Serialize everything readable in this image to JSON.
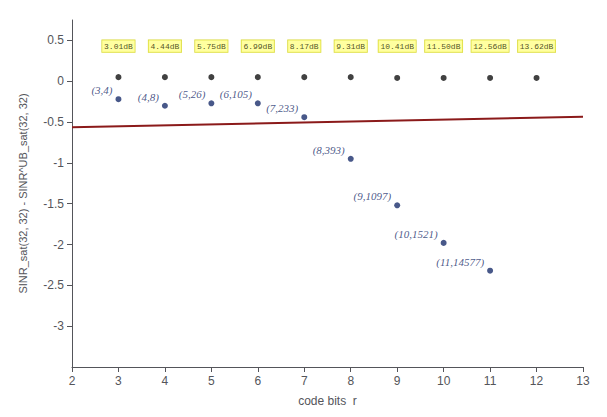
{
  "chart_data": {
    "type": "scatter",
    "xlabel": "code bits  r",
    "ylabel": "SINR_sat(32, 32) - SINR^UB_sat(32, 32)",
    "xlim": [
      2,
      13
    ],
    "ylim": [
      -3.5,
      0.75
    ],
    "xticks": [
      2,
      3,
      4,
      5,
      6,
      7,
      8,
      9,
      10,
      11,
      12,
      13
    ],
    "yticks": [
      0.5,
      0,
      -0.5,
      -1,
      -1.5,
      -2,
      -2.5,
      -3
    ],
    "grid": false,
    "series": [
      {
        "type": "line",
        "color": "#8b1a1a",
        "x": [
          2,
          13
        ],
        "values": [
          -0.565,
          -0.435
        ]
      },
      {
        "type": "scatter",
        "color": "#111111",
        "x": [
          3,
          4,
          5,
          6,
          7,
          8,
          9,
          10,
          11,
          12
        ],
        "values": [
          0.05,
          0.05,
          0.05,
          0.05,
          0.05,
          0.05,
          0.04,
          0.04,
          0.04,
          0.04
        ]
      },
      {
        "type": "scatter",
        "color": "#1a2e6b",
        "x": [
          3,
          4,
          5,
          6,
          7,
          8,
          9,
          10,
          11
        ],
        "values": [
          -0.22,
          -0.3,
          -0.27,
          -0.27,
          -0.44,
          -0.95,
          -1.52,
          -1.98,
          -2.32
        ],
        "labels": [
          "(3,4)",
          "(4,8)",
          "(5,26)",
          "(6,105)",
          "(7,233)",
          "(8,393)",
          "(9,1097)",
          "(10,1521)",
          "(11,14577)"
        ]
      }
    ],
    "annotations": [
      {
        "x": 3,
        "y": 0.43,
        "text": "3.01dB"
      },
      {
        "x": 4,
        "y": 0.43,
        "text": "4.44dB"
      },
      {
        "x": 5,
        "y": 0.43,
        "text": "5.75dB"
      },
      {
        "x": 6,
        "y": 0.43,
        "text": "6.99dB"
      },
      {
        "x": 7,
        "y": 0.43,
        "text": "8.17dB"
      },
      {
        "x": 8,
        "y": 0.43,
        "text": "9.31dB"
      },
      {
        "x": 9,
        "y": 0.43,
        "text": "10.41dB"
      },
      {
        "x": 10,
        "y": 0.43,
        "text": "11.50dB"
      },
      {
        "x": 11,
        "y": 0.43,
        "text": "12.56dB"
      },
      {
        "x": 12,
        "y": 0.43,
        "text": "13.62dB"
      }
    ]
  }
}
